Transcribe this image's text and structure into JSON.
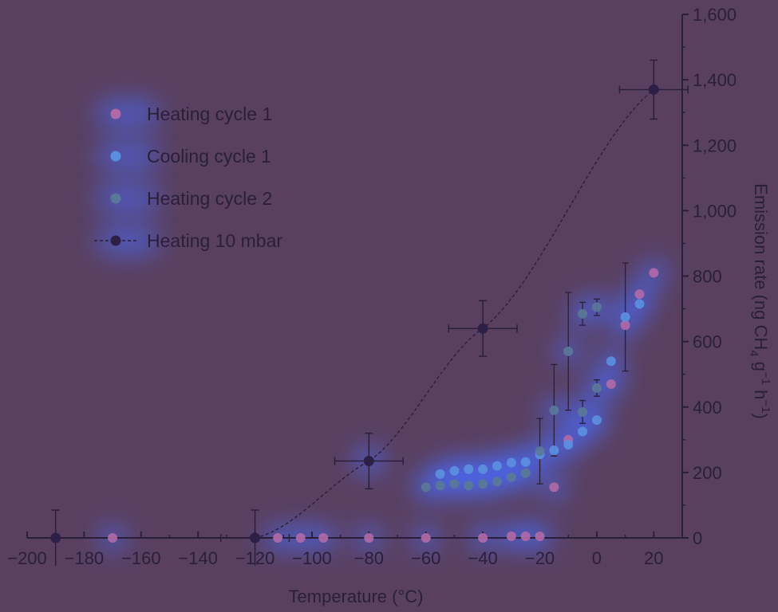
{
  "chart_data": {
    "type": "scatter",
    "xlabel": "Temperature  (°C)",
    "ylabel_parts": [
      "Emission rate (ng CH",
      "4",
      " g",
      "−1",
      " h",
      "−1",
      ")"
    ],
    "xlim": [
      -200,
      30
    ],
    "ylim": [
      0,
      1600
    ],
    "x_ticks": [
      -200,
      -180,
      -160,
      -140,
      -120,
      -100,
      -80,
      -60,
      -40,
      -20,
      0,
      20
    ],
    "x_tick_labels": [
      "−200",
      "−180",
      "−160",
      "−140",
      "−120",
      "−100",
      "−80",
      "−60",
      "−40",
      "−20",
      "0",
      "20"
    ],
    "y_ticks": [
      0,
      200,
      400,
      600,
      800,
      1000,
      1200,
      1400,
      1600
    ],
    "y_tick_labels": [
      "0",
      "200",
      "400",
      "600",
      "800",
      "1,000",
      "1,200",
      "1,400",
      "1,600"
    ],
    "y_axis_position": "right",
    "legend_position": "top-left",
    "series": [
      {
        "name": "Heating cycle 1",
        "color": "#b06aa8",
        "marker": "dot",
        "points": [
          {
            "x": -170,
            "y": 0
          },
          {
            "x": -112,
            "y": 0
          },
          {
            "x": -104,
            "y": 0
          },
          {
            "x": -96,
            "y": 0
          },
          {
            "x": -80,
            "y": 0
          },
          {
            "x": -60,
            "y": 0
          },
          {
            "x": -40,
            "y": 0
          },
          {
            "x": -30,
            "y": 5
          },
          {
            "x": -25,
            "y": 5
          },
          {
            "x": -20,
            "y": 5
          },
          {
            "x": -15,
            "y": 155
          },
          {
            "x": -10,
            "y": 300
          },
          {
            "x": 5,
            "y": 470
          },
          {
            "x": 10,
            "y": 650
          },
          {
            "x": 15,
            "y": 745
          },
          {
            "x": 20,
            "y": 810
          }
        ]
      },
      {
        "name": "Cooling cycle 1",
        "color": "#5c8fe0",
        "marker": "dot",
        "points": [
          {
            "x": -55,
            "y": 195
          },
          {
            "x": -50,
            "y": 205
          },
          {
            "x": -45,
            "y": 210
          },
          {
            "x": -40,
            "y": 210
          },
          {
            "x": -35,
            "y": 220
          },
          {
            "x": -30,
            "y": 230
          },
          {
            "x": -25,
            "y": 232
          },
          {
            "x": -20,
            "y": 255
          },
          {
            "x": -15,
            "y": 268
          },
          {
            "x": -10,
            "y": 285
          },
          {
            "x": -5,
            "y": 325
          },
          {
            "x": 0,
            "y": 360
          },
          {
            "x": 5,
            "y": 540
          },
          {
            "x": 10,
            "y": 675
          },
          {
            "x": 15,
            "y": 715
          }
        ]
      },
      {
        "name": "Heating cycle 2",
        "color": "#5a7898",
        "marker": "dot",
        "points": [
          {
            "x": -60,
            "y": 155
          },
          {
            "x": -55,
            "y": 160
          },
          {
            "x": -50,
            "y": 165
          },
          {
            "x": -45,
            "y": 160
          },
          {
            "x": -40,
            "y": 165
          },
          {
            "x": -35,
            "y": 172
          },
          {
            "x": -30,
            "y": 185
          },
          {
            "x": -25,
            "y": 198
          },
          {
            "x": -20,
            "y": 265
          },
          {
            "x": -15,
            "y": 390
          },
          {
            "x": -10,
            "y": 570
          },
          {
            "x": -5,
            "y": 385
          },
          {
            "x": -5,
            "y": 685
          },
          {
            "x": 0,
            "y": 458
          },
          {
            "x": 0,
            "y": 705
          }
        ]
      },
      {
        "name": "Heating 10 mbar",
        "color": "#2c2046",
        "marker": "dot",
        "line": "dashed",
        "points": [
          {
            "x": -190,
            "y": 0,
            "ye": 85
          },
          {
            "x": -120,
            "y": 0,
            "ye": 85,
            "xe": 12
          },
          {
            "x": -80,
            "y": 235,
            "ye": 85,
            "xe": 12
          },
          {
            "x": -40,
            "y": 640,
            "ye": 85,
            "xe": 12
          },
          {
            "x": 20,
            "y": 1370,
            "ye": 90,
            "xe": 12
          }
        ]
      }
    ]
  }
}
